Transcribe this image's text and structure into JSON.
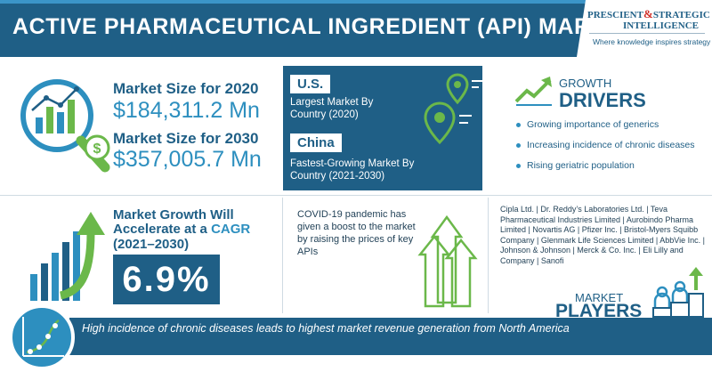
{
  "header": {
    "title": "ACTIVE PHARMACEUTICAL INGREDIENT (API) MARKET",
    "logo": {
      "line1_part1": "PRESCIENT",
      "line1_amp": "&",
      "line1_part2": "STRATEGIC",
      "line2": "INTELLIGENCE",
      "tagline": "Where knowledge inspires strategy"
    }
  },
  "market_size": {
    "label_2020": "Market Size for 2020",
    "value_2020": "$184,311.2 Mn",
    "label_2030": "Market Size for 2030",
    "value_2030": "$357,005.7 Mn",
    "icon": "magnifier-chart-icon"
  },
  "regions": {
    "us": {
      "badge": "U.S.",
      "text": "Largest Market By Country (2020)"
    },
    "china": {
      "badge": "China",
      "text": "Fastest-Growing Market By Country (2021-2030)"
    },
    "icon": "map-pin-icon"
  },
  "growth_drivers": {
    "title_small": "GROWTH",
    "title_big": "DRIVERS",
    "items": [
      "Growing importance of generics",
      "Increasing incidence of chronic diseases",
      "Rising geriatric population"
    ],
    "icon": "trend-up-icon"
  },
  "cagr": {
    "text": "Market Growth Will Accelerate at a ",
    "highlight": "CAGR",
    "years": "(2021–2030)",
    "value": "6.9%",
    "icon": "bar-chart-arrow-icon"
  },
  "covid": {
    "text": "COVID-19 pandemic has given a boost to the market by raising the prices of key APIs",
    "icon": "rising-arrows-icon"
  },
  "players": {
    "list": "Cipla Ltd. | Dr. Reddy’s Laboratories Ltd. | Teva Pharmaceutical Industries Limited | Aurobindo Pharma Limited | Novartis AG | Pfizer Inc. | Bristol-Myers Squibb Company | Glenmark Life Sciences Limited | AbbVie Inc. | Johnson & Johnson | Merck & Co. Inc. | Eli Lilly and Company | Sanofi",
    "title_small": "MARKET",
    "title_big": "PLAYERS",
    "icon": "podium-people-icon"
  },
  "footer": {
    "text": "High incidence of chronic diseases leads to highest market revenue generation from North America",
    "icon": "growth-curve-icon"
  },
  "colors": {
    "primary": "#1f5f86",
    "accent": "#2d8fbf",
    "green": "#6bb84a",
    "logo_red": "#d0302a"
  }
}
